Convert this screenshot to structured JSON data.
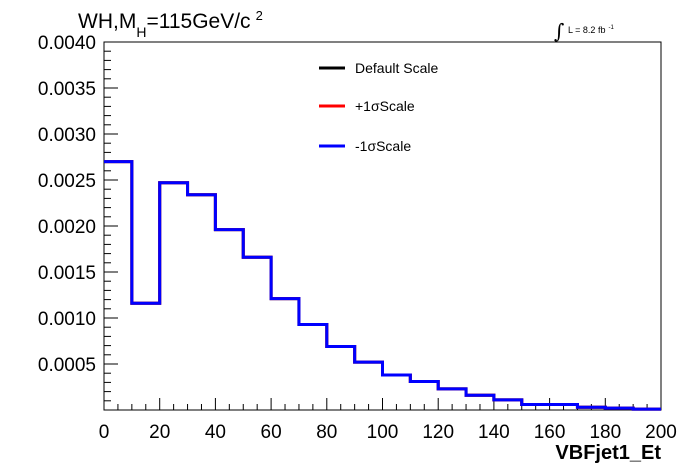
{
  "chart_data": {
    "type": "line",
    "title_parts": {
      "main": "WH,M",
      "subscript": "H",
      "rest": "=115GeV/c",
      "superscript": "2"
    },
    "luminosity": {
      "integral": "∫",
      "text": "L = 8.2 fb",
      "superscript": "-1"
    },
    "xlabel": "VBFjet1_Et",
    "ylabel": "",
    "xlim": [
      0,
      200
    ],
    "ylim": [
      0,
      0.004
    ],
    "x_ticks": [
      "0",
      "20",
      "40",
      "60",
      "80",
      "100",
      "120",
      "140",
      "160",
      "180",
      "200"
    ],
    "y_ticks": [
      "0.0005",
      "0.0010",
      "0.0015",
      "0.0020",
      "0.0025",
      "0.0030",
      "0.0035",
      "0.0040"
    ],
    "bin_edges": [
      0,
      10,
      20,
      30,
      40,
      50,
      60,
      70,
      80,
      90,
      100,
      110,
      120,
      130,
      140,
      150,
      160,
      170,
      180,
      190,
      200
    ],
    "series": [
      {
        "name": "Default Scale",
        "color": "#000000",
        "values": [
          0.0027,
          0.00116,
          0.00247,
          0.00234,
          0.00196,
          0.00166,
          0.00121,
          0.00093,
          0.00069,
          0.00052,
          0.00038,
          0.00031,
          0.00023,
          0.00016,
          0.00011,
          6e-05,
          6e-05,
          3e-05,
          2e-05,
          1e-05
        ]
      },
      {
        "name": "+1σScale",
        "color": "#ff0000",
        "values": [
          0.0027,
          0.00116,
          0.00247,
          0.00234,
          0.00196,
          0.00166,
          0.00121,
          0.00093,
          0.00069,
          0.00052,
          0.00038,
          0.00031,
          0.00023,
          0.00016,
          0.00011,
          6e-05,
          6e-05,
          3e-05,
          2e-05,
          1e-05
        ]
      },
      {
        "name": "-1σScale",
        "color": "#0000ff",
        "values": [
          0.0027,
          0.00116,
          0.00247,
          0.00234,
          0.00196,
          0.00166,
          0.00121,
          0.00093,
          0.00069,
          0.00052,
          0.00038,
          0.00031,
          0.00023,
          0.00016,
          0.00011,
          6e-05,
          6e-05,
          3e-05,
          2e-05,
          1e-05
        ]
      }
    ],
    "legend_position": "top-center",
    "grid": false
  }
}
